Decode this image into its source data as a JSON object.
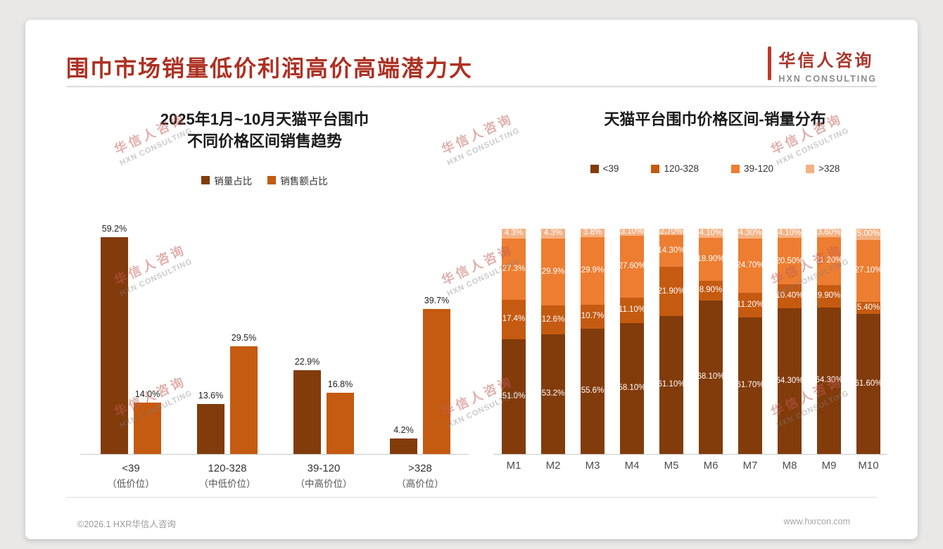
{
  "page": {
    "main_title": "围巾市场销量低价利润高价高端潜力大",
    "logo": {
      "cn": "华信人咨询",
      "en": "HXN CONSULTING"
    },
    "watermark": {
      "cn": "华信人咨询",
      "en": "HXN CONSULTING"
    },
    "footer": {
      "left": "©2026.1 HXR华信人咨询",
      "right": "www.hxrcon.com"
    }
  },
  "colors": {
    "title_red": "#ad3123",
    "brown_dark": "#823B0B",
    "orange_burnt": "#C55A11",
    "orange": "#ED7D31",
    "orange_light": "#F4B183"
  },
  "chart_data": [
    {
      "type": "bar",
      "stacked": false,
      "title": "2025年1月~10月天猫平台围巾 不同价格区间销售趋势",
      "title_lines": [
        "2025年1月~10月天猫平台围巾",
        "不同价格区间销售趋势"
      ],
      "categories": [
        "<39",
        "120-328",
        "39-120",
        ">328"
      ],
      "category_sublabels": [
        "（低价位）",
        "（中低价位）",
        "（中高价位）",
        "（高价位）"
      ],
      "series": [
        {
          "name": "销量占比",
          "color": "#823B0B",
          "values": [
            59.2,
            13.6,
            22.9,
            4.2
          ],
          "labels": [
            "59.2%",
            "13.6%",
            "22.9%",
            "4.2%"
          ]
        },
        {
          "name": "销售额占比",
          "color": "#C55A11",
          "values": [
            14.0,
            29.5,
            16.8,
            39.7
          ],
          "labels": [
            "14.0%",
            "29.5%",
            "16.8%",
            "39.7%"
          ]
        }
      ],
      "xlabel": "",
      "ylabel": "",
      "ylim": [
        0,
        62
      ],
      "grid": false,
      "y_axis_visible": false,
      "legend_position": "top",
      "value_labels": "outside-top"
    },
    {
      "type": "bar",
      "stacked": true,
      "stacked_100_percent": true,
      "title": "天猫平台围巾价格区间-销量分布",
      "categories": [
        "M1",
        "M2",
        "M3",
        "M4",
        "M5",
        "M6",
        "M7",
        "M8",
        "M9",
        "M10"
      ],
      "series": [
        {
          "name": "<39",
          "color": "#823B0B",
          "values": [
            51.0,
            53.2,
            55.6,
            58.1,
            61.1,
            68.1,
            61.7,
            64.3,
            64.3,
            61.6
          ],
          "labels": [
            "51.0%",
            "53.2%",
            "55.6%",
            "58.10%",
            "61.10%",
            "68.10%",
            "61.70%",
            "64.30%",
            "64.30%",
            "61.60%"
          ]
        },
        {
          "name": "120-328",
          "color": "#C55A11",
          "values": [
            17.4,
            12.6,
            10.7,
            11.1,
            21.9,
            8.9,
            11.2,
            10.4,
            9.9,
            5.4
          ],
          "labels": [
            "17.4%",
            "12.6%",
            "10.7%",
            "11.10%",
            "21.90%",
            "8.90%",
            "11.20%",
            "10.40%",
            "9.90%",
            "5.40%"
          ]
        },
        {
          "name": "39-120",
          "color": "#ED7D31",
          "values": [
            27.3,
            29.9,
            29.9,
            27.6,
            14.3,
            18.9,
            24.7,
            20.5,
            21.2,
            27.1
          ],
          "labels": [
            "27.3%",
            "29.9%",
            "29.9%",
            "27.60%",
            "14.30%",
            "18.90%",
            "24.70%",
            "20.50%",
            "21.20%",
            "27.10%"
          ]
        },
        {
          "name": ">328",
          "color": "#F4B183",
          "values": [
            4.3,
            4.3,
            3.8,
            3.1,
            2.7,
            4.1,
            4.3,
            4.1,
            3.6,
            5.0
          ],
          "labels": [
            "4.3%",
            "4.3%",
            "3.8%",
            "3.10%",
            "2.70%",
            "4.10%",
            "4.30%",
            "4.10%",
            "3.60%",
            "5.00%"
          ]
        }
      ],
      "stack_order": "bottom-to-top",
      "xlabel": "",
      "ylabel": "",
      "ylim": [
        0,
        100
      ],
      "grid": false,
      "y_axis_visible": false,
      "legend_position": "top",
      "value_labels": "inside-center"
    }
  ]
}
